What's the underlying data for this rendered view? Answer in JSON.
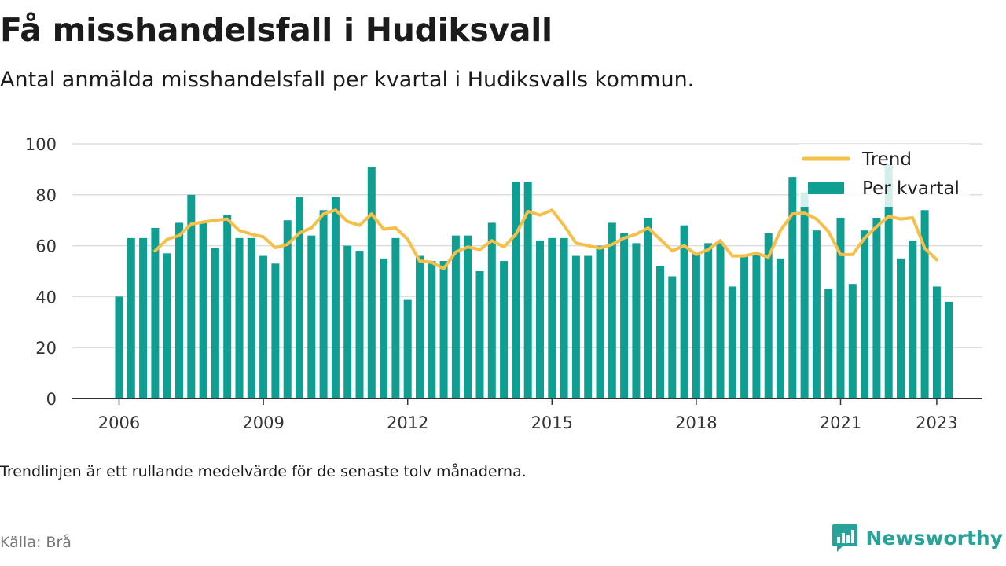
{
  "title": "Få misshandelsfall i Hudiksvall",
  "subtitle": "Antal anmälda misshandelsfall per kvartal i Hudiksvalls kommun.",
  "note": "Trendlinjen är ett rullande medelvärde för de senaste tolv månaderna.",
  "source": "Källa: Brå",
  "brand": {
    "name": "Newsworthy",
    "icon": "newsworthy-logo-icon"
  },
  "colors": {
    "bars": "#0f9e92",
    "trend": "#f5c04a",
    "grid": "#dddddd",
    "axis": "#333333",
    "brand": "#27a39a"
  },
  "chart_data": {
    "type": "bar",
    "x_start": "2006 Q1",
    "x_ticks": [
      "2006",
      "2009",
      "2012",
      "2015",
      "2018",
      "2021",
      "2023"
    ],
    "y_ticks": [
      "0",
      "20",
      "40",
      "60",
      "80",
      "100"
    ],
    "ylim": [
      0,
      100
    ],
    "grid": true,
    "legend_position": "top-right",
    "series": [
      {
        "name": "Per kvartal",
        "type": "bar",
        "values": [
          40,
          63,
          63,
          67,
          57,
          69,
          80,
          69,
          59,
          72,
          63,
          63,
          56,
          53,
          70,
          79,
          64,
          74,
          79,
          60,
          58,
          91,
          55,
          63,
          39,
          56,
          54,
          54,
          64,
          64,
          50,
          69,
          54,
          85,
          85,
          62,
          63,
          63,
          56,
          56,
          60,
          69,
          65,
          61,
          71,
          52,
          48,
          68,
          57,
          61,
          61,
          44,
          56,
          57,
          65,
          55,
          87,
          81,
          66,
          43,
          71,
          45,
          66,
          71,
          92,
          55,
          62,
          74,
          44,
          38
        ]
      },
      {
        "name": "Trend",
        "type": "line",
        "start_index": 3,
        "values": [
          58,
          62.5,
          64,
          68.5,
          69.3,
          70,
          70.5,
          66,
          64.5,
          63.5,
          59.2,
          60.5,
          65,
          67,
          72.5,
          74,
          69.5,
          68,
          72.5,
          66.5,
          67,
          62.5,
          54,
          53.5,
          51,
          57.5,
          59.5,
          58.5,
          62,
          59.5,
          64.5,
          73.5,
          72,
          74,
          68,
          61,
          60,
          59,
          60.5,
          63,
          64.5,
          67,
          62.5,
          58,
          60,
          56.5,
          58.5,
          62,
          56,
          56,
          57,
          55.5,
          66,
          72.5,
          72.8,
          70.5,
          65.5,
          56.5,
          56.5,
          63,
          67.5,
          71.5,
          70.5,
          71,
          59,
          54.5
        ]
      }
    ]
  }
}
